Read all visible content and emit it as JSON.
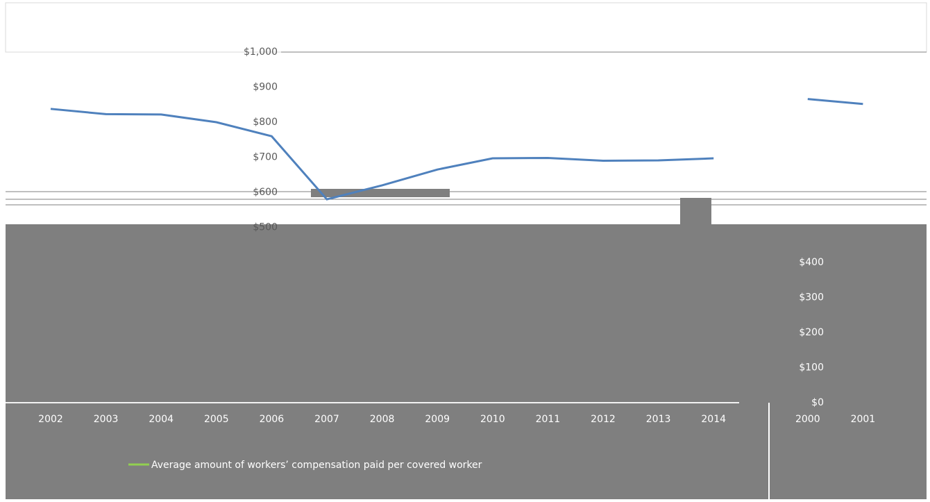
{
  "chart_data": {
    "type": "line",
    "categories": [
      "2000",
      "2001",
      "2002",
      "2003",
      "2004",
      "2005",
      "2006",
      "2007",
      "2008",
      "2009",
      "2010",
      "2011",
      "2012",
      "2013",
      "2014"
    ],
    "series": [
      {
        "name": "Average amount of workers’ compensation paid per covered worker",
        "color": "#4f81bd",
        "values": [
          866,
          852,
          838,
          823,
          822,
          800,
          760,
          580,
          620,
          665,
          697,
          698,
          690,
          691,
          697
        ]
      }
    ],
    "ylim": [
      0,
      1000
    ],
    "yticks": [
      {
        "value": 0,
        "label": "$0"
      },
      {
        "value": 100,
        "label": "$100"
      },
      {
        "value": 200,
        "label": "$200"
      },
      {
        "value": 300,
        "label": "$300"
      },
      {
        "value": 400,
        "label": "$400"
      },
      {
        "value": 500,
        "label": "$500"
      },
      {
        "value": 600,
        "label": "$600"
      },
      {
        "value": 700,
        "label": "$700"
      },
      {
        "value": 800,
        "label": "$800"
      },
      {
        "value": 900,
        "label": "$900"
      },
      {
        "value": 1000,
        "label": "$1,000"
      }
    ],
    "legend_color": "#92d050"
  }
}
